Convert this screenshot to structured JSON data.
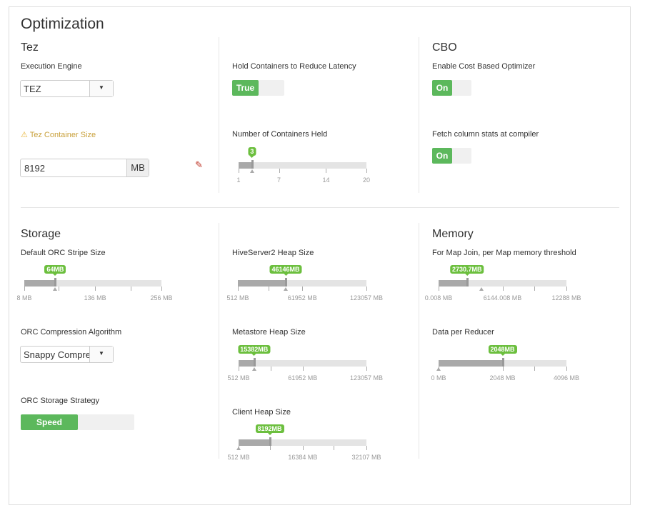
{
  "title": "Optimization",
  "accent": "#6cbf3e",
  "tez": {
    "heading": "Tez",
    "engine_label": "Execution Engine",
    "engine_value": "TEZ",
    "container_size_label": "Tez Container Size",
    "container_size_value": "8192",
    "container_size_unit": "MB",
    "warning_icon": "warning-icon",
    "edit_icon": "pencil-icon"
  },
  "hold": {
    "label": "Hold Containers to Reduce Latency",
    "value": "True"
  },
  "containers": {
    "label": "Number of Containers Held",
    "slider": {
      "min": 1,
      "max": 20,
      "value": 3,
      "display": "3",
      "ticks": [
        1,
        7,
        14,
        20
      ],
      "labels": [
        "1",
        "7",
        "14",
        "20"
      ],
      "default": 3
    }
  },
  "cbo": {
    "heading": "CBO",
    "enable_label": "Enable Cost Based Optimizer",
    "enable_value": "On",
    "fetch_label": "Fetch column stats at compiler",
    "fetch_value": "On"
  },
  "storage": {
    "heading": "Storage",
    "stripe_label": "Default ORC Stripe Size",
    "stripe": {
      "min": 8,
      "max": 256,
      "value": 64,
      "display": "64MB",
      "ticks": [
        8,
        70,
        136,
        200,
        256
      ],
      "labels": [
        "8 MB",
        "",
        "136 MB",
        "",
        "256 MB"
      ],
      "default": 64
    },
    "compression_label": "ORC Compression Algorithm",
    "compression_value": "Snappy Compression",
    "strategy_label": "ORC Storage Strategy",
    "strategy_value": "Speed"
  },
  "heaps": {
    "hs2_label": "HiveServer2 Heap Size",
    "hs2": {
      "min": 512,
      "max": 123057,
      "value": 46146,
      "display": "46146MB",
      "ticks": [
        512,
        30000,
        61952,
        123057
      ],
      "labels": [
        "512 MB",
        "",
        "61952 MB",
        "123057 MB"
      ],
      "default": 46146
    },
    "meta_label": "Metastore Heap Size",
    "meta": {
      "min": 512,
      "max": 123057,
      "value": 15382,
      "display": "15382MB",
      "ticks": [
        512,
        31000,
        61952,
        123057
      ],
      "labels": [
        "512 MB",
        "",
        "61952 MB",
        "123057 MB"
      ],
      "default": 15382
    },
    "client_label": "Client Heap Size",
    "client": {
      "min": 512,
      "max": 32107,
      "value": 8192,
      "display": "8192MB",
      "ticks": [
        512,
        8192,
        16384,
        24000,
        32107
      ],
      "labels": [
        "512 MB",
        "",
        "16384 MB",
        "",
        "32107 MB"
      ],
      "default": 512
    }
  },
  "memory": {
    "heading": "Memory",
    "mapjoin_label": "For Map Join, per Map memory threshold",
    "mapjoin": {
      "min": 0.008,
      "max": 12288,
      "value": 2730.7,
      "display": "2730.7MB",
      "ticks": [
        0.008,
        6144.008,
        9216,
        12288
      ],
      "labels": [
        "0.008 MB",
        "6144.008 MB",
        "",
        "12288 MB"
      ],
      "default": 4100
    },
    "reducer_label": "Data per Reducer",
    "reducer": {
      "min": 0,
      "max": 4096,
      "value": 2048,
      "display": "2048MB",
      "ticks": [
        0,
        2048,
        3072,
        4096
      ],
      "labels": [
        "0 MB",
        "2048 MB",
        "",
        "4096 MB"
      ],
      "default": 0
    }
  }
}
